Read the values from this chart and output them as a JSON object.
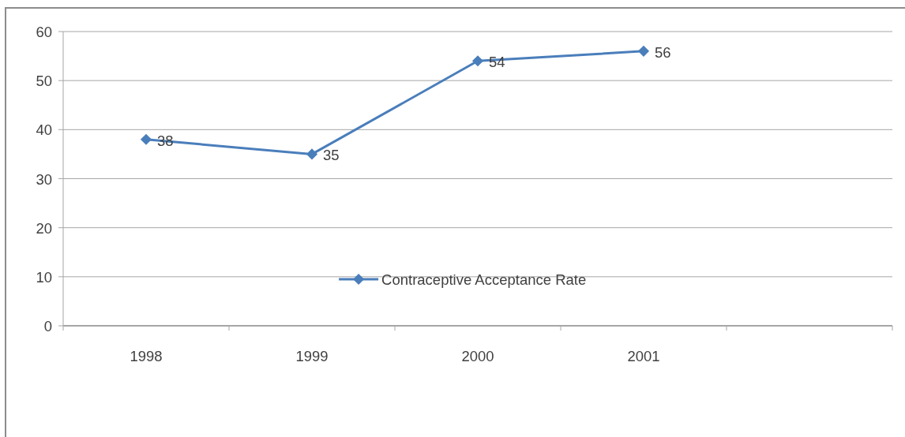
{
  "chart_data": {
    "type": "line",
    "categories": [
      "1998",
      "1999",
      "2000",
      "2001",
      null
    ],
    "series": [
      {
        "name": "Contraceptive Acceptance Rate",
        "color": "#4a7ebb",
        "values": [
          38,
          35,
          54,
          56,
          null
        ]
      }
    ],
    "ylim": [
      0,
      60
    ],
    "yticks": [
      0,
      10,
      20,
      30,
      40,
      50,
      60
    ],
    "grid": "y",
    "legend": "bottom",
    "marker": "diamond",
    "data_labels": true
  }
}
